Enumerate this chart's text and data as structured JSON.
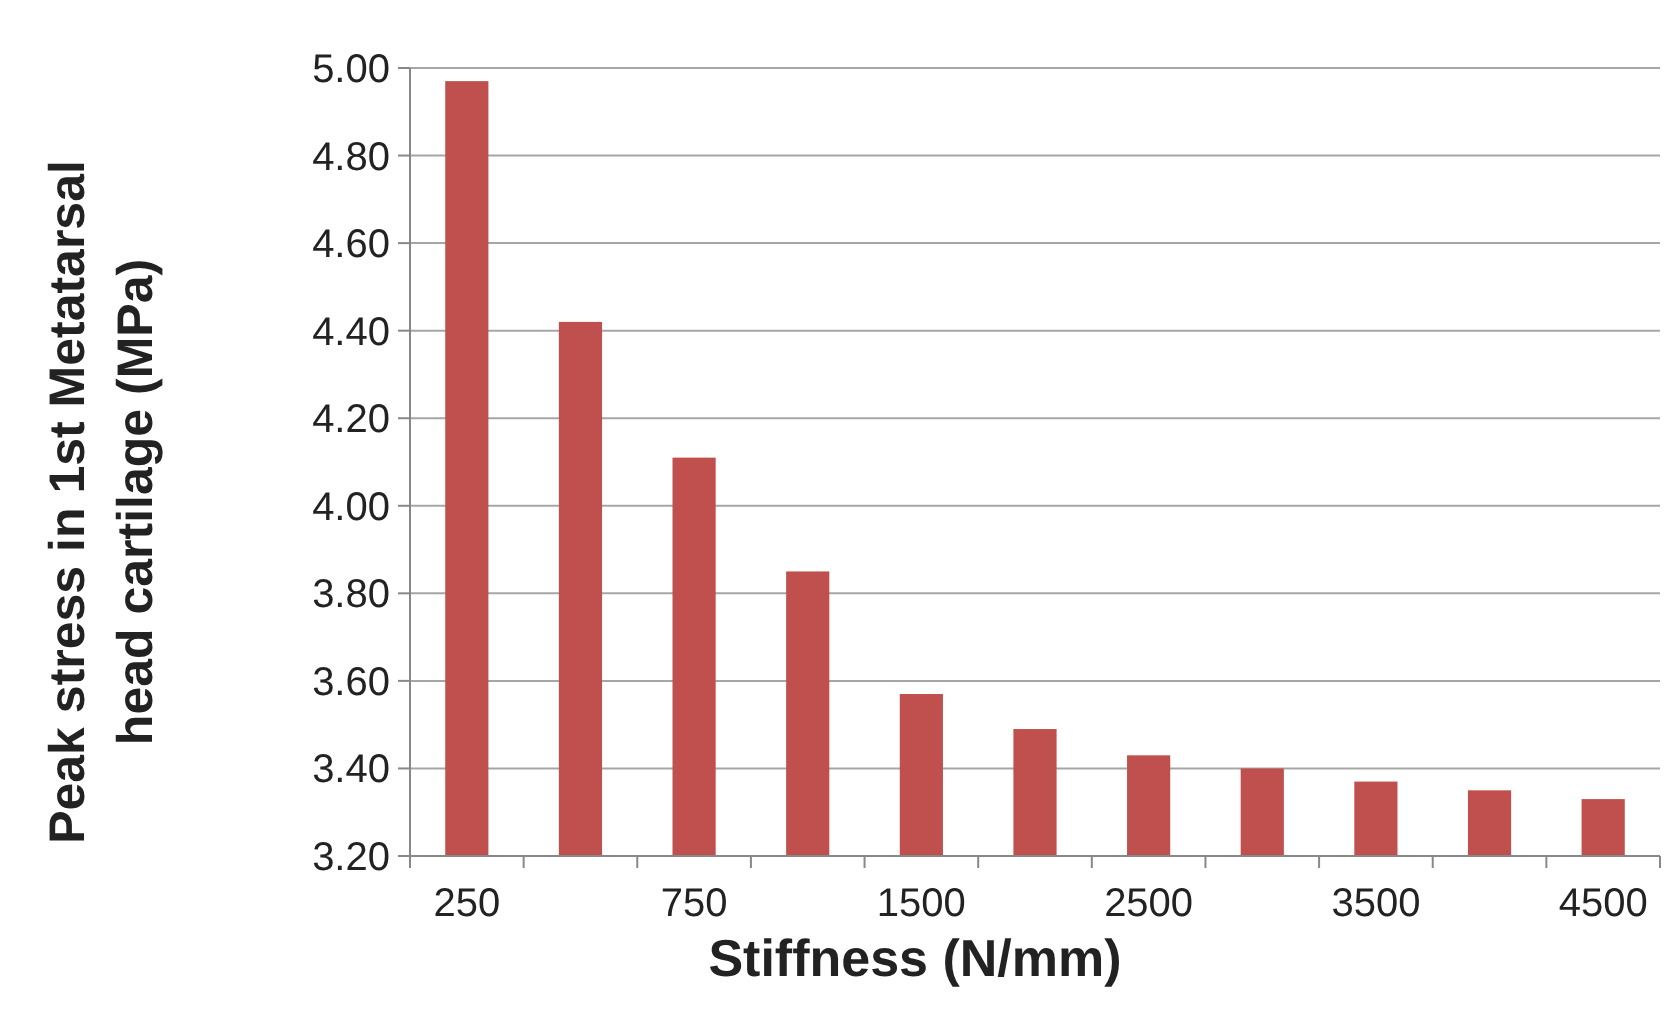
{
  "chart_data": {
    "type": "bar",
    "xlabel": "Stiffness (N/mm)",
    "ylabel": "Peak stress in 1st Metatarsal head cartilage (MPa)",
    "categories": [
      "250",
      null,
      "750",
      null,
      "1500",
      null,
      "2500",
      null,
      "3500",
      null,
      "4500"
    ],
    "values": [
      4.97,
      4.42,
      4.11,
      3.85,
      3.57,
      3.49,
      3.43,
      3.4,
      3.37,
      3.35,
      3.33
    ],
    "color": "#c0504d",
    "ylim": [
      3.2,
      5.0
    ],
    "yticks": [
      {
        "value": 3.2,
        "label": "3.20"
      },
      {
        "value": 3.4,
        "label": "3.40"
      },
      {
        "value": 3.6,
        "label": "3.60"
      },
      {
        "value": 3.8,
        "label": "3.80"
      },
      {
        "value": 4.0,
        "label": "4.00"
      },
      {
        "value": 4.2,
        "label": "4.20"
      },
      {
        "value": 4.4,
        "label": "4.40"
      },
      {
        "value": 4.6,
        "label": "4.60"
      },
      {
        "value": 4.8,
        "label": "4.80"
      },
      {
        "value": 5.0,
        "label": "5.00"
      }
    ],
    "grid": "y"
  }
}
